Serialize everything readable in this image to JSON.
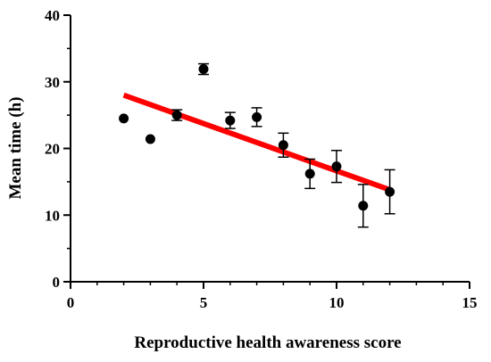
{
  "chart_data": {
    "type": "scatter",
    "title": "",
    "xlabel": "Reproductive health awareness score",
    "ylabel": "Mean time (h)",
    "xlim": [
      0,
      15
    ],
    "ylim": [
      0,
      40
    ],
    "x_ticks": [
      0,
      5,
      10,
      15
    ],
    "y_ticks": [
      0,
      10,
      20,
      30,
      40
    ],
    "x_tick_labels": [
      "0",
      "5",
      "10",
      "15"
    ],
    "y_tick_labels": [
      "0",
      "10",
      "20",
      "30",
      "40"
    ],
    "grid": false,
    "legend": "none",
    "series": [
      {
        "type": "scatter",
        "color": "#000000",
        "points": [
          {
            "x": 2,
            "y": 24.5,
            "err": 0
          },
          {
            "x": 3,
            "y": 21.4,
            "err": 0
          },
          {
            "x": 4,
            "y": 25.0,
            "err": 0.8
          },
          {
            "x": 5,
            "y": 31.9,
            "err": 0.8
          },
          {
            "x": 6,
            "y": 24.2,
            "err": 1.2
          },
          {
            "x": 7,
            "y": 24.7,
            "err": 1.4
          },
          {
            "x": 8,
            "y": 20.5,
            "err": 1.8
          },
          {
            "x": 9,
            "y": 16.2,
            "err": 2.2
          },
          {
            "x": 10,
            "y": 17.3,
            "err": 2.4
          },
          {
            "x": 11,
            "y": 11.4,
            "err": 3.2
          },
          {
            "x": 12,
            "y": 13.5,
            "err": 3.3
          }
        ]
      },
      {
        "type": "line",
        "kind": "regression",
        "color": "#ff0000",
        "points": [
          {
            "x": 2,
            "y": 28.0
          },
          {
            "x": 12,
            "y": 13.8
          }
        ]
      }
    ]
  }
}
